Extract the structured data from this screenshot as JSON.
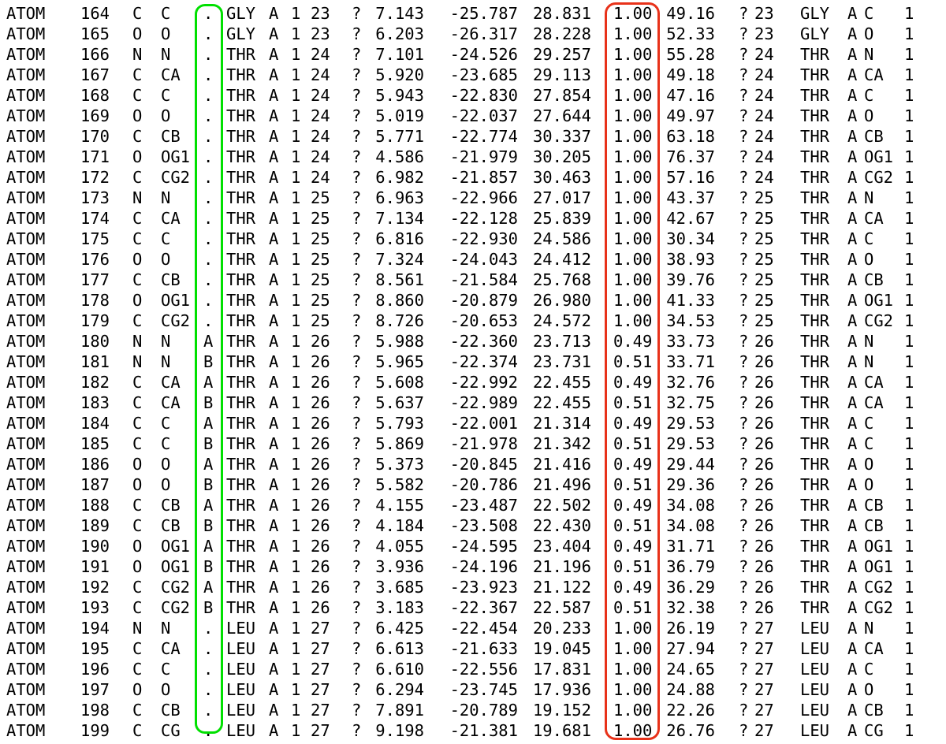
{
  "highlights": {
    "alt_loc_box_color": "#00e000",
    "occupancy_box_color": "#e8321a"
  },
  "rows": [
    [
      "ATOM",
      "164",
      "C",
      "C",
      ".",
      "GLY",
      "A",
      "1",
      "23",
      "?",
      "7.143",
      "-25.787",
      "28.831",
      "1.00",
      "49.16",
      "?",
      "23",
      "GLY",
      "A",
      "C",
      "1"
    ],
    [
      "ATOM",
      "165",
      "O",
      "O",
      ".",
      "GLY",
      "A",
      "1",
      "23",
      "?",
      "6.203",
      "-26.317",
      "28.228",
      "1.00",
      "52.33",
      "?",
      "23",
      "GLY",
      "A",
      "O",
      "1"
    ],
    [
      "ATOM",
      "166",
      "N",
      "N",
      ".",
      "THR",
      "A",
      "1",
      "24",
      "?",
      "7.101",
      "-24.526",
      "29.257",
      "1.00",
      "55.28",
      "?",
      "24",
      "THR",
      "A",
      "N",
      "1"
    ],
    [
      "ATOM",
      "167",
      "C",
      "CA",
      ".",
      "THR",
      "A",
      "1",
      "24",
      "?",
      "5.920",
      "-23.685",
      "29.113",
      "1.00",
      "49.18",
      "?",
      "24",
      "THR",
      "A",
      "CA",
      "1"
    ],
    [
      "ATOM",
      "168",
      "C",
      "C",
      ".",
      "THR",
      "A",
      "1",
      "24",
      "?",
      "5.943",
      "-22.830",
      "27.854",
      "1.00",
      "47.16",
      "?",
      "24",
      "THR",
      "A",
      "C",
      "1"
    ],
    [
      "ATOM",
      "169",
      "O",
      "O",
      ".",
      "THR",
      "A",
      "1",
      "24",
      "?",
      "5.019",
      "-22.037",
      "27.644",
      "1.00",
      "49.97",
      "?",
      "24",
      "THR",
      "A",
      "O",
      "1"
    ],
    [
      "ATOM",
      "170",
      "C",
      "CB",
      ".",
      "THR",
      "A",
      "1",
      "24",
      "?",
      "5.771",
      "-22.774",
      "30.337",
      "1.00",
      "63.18",
      "?",
      "24",
      "THR",
      "A",
      "CB",
      "1"
    ],
    [
      "ATOM",
      "171",
      "O",
      "OG1",
      ".",
      "THR",
      "A",
      "1",
      "24",
      "?",
      "4.586",
      "-21.979",
      "30.205",
      "1.00",
      "76.37",
      "?",
      "24",
      "THR",
      "A",
      "OG1",
      "1"
    ],
    [
      "ATOM",
      "172",
      "C",
      "CG2",
      ".",
      "THR",
      "A",
      "1",
      "24",
      "?",
      "6.982",
      "-21.857",
      "30.463",
      "1.00",
      "57.16",
      "?",
      "24",
      "THR",
      "A",
      "CG2",
      "1"
    ],
    [
      "ATOM",
      "173",
      "N",
      "N",
      ".",
      "THR",
      "A",
      "1",
      "25",
      "?",
      "6.963",
      "-22.966",
      "27.017",
      "1.00",
      "43.37",
      "?",
      "25",
      "THR",
      "A",
      "N",
      "1"
    ],
    [
      "ATOM",
      "174",
      "C",
      "CA",
      ".",
      "THR",
      "A",
      "1",
      "25",
      "?",
      "7.134",
      "-22.128",
      "25.839",
      "1.00",
      "42.67",
      "?",
      "25",
      "THR",
      "A",
      "CA",
      "1"
    ],
    [
      "ATOM",
      "175",
      "C",
      "C",
      ".",
      "THR",
      "A",
      "1",
      "25",
      "?",
      "6.816",
      "-22.930",
      "24.586",
      "1.00",
      "30.34",
      "?",
      "25",
      "THR",
      "A",
      "C",
      "1"
    ],
    [
      "ATOM",
      "176",
      "O",
      "O",
      ".",
      "THR",
      "A",
      "1",
      "25",
      "?",
      "7.324",
      "-24.043",
      "24.412",
      "1.00",
      "38.93",
      "?",
      "25",
      "THR",
      "A",
      "O",
      "1"
    ],
    [
      "ATOM",
      "177",
      "C",
      "CB",
      ".",
      "THR",
      "A",
      "1",
      "25",
      "?",
      "8.561",
      "-21.584",
      "25.768",
      "1.00",
      "39.76",
      "?",
      "25",
      "THR",
      "A",
      "CB",
      "1"
    ],
    [
      "ATOM",
      "178",
      "O",
      "OG1",
      ".",
      "THR",
      "A",
      "1",
      "25",
      "?",
      "8.860",
      "-20.879",
      "26.980",
      "1.00",
      "41.33",
      "?",
      "25",
      "THR",
      "A",
      "OG1",
      "1"
    ],
    [
      "ATOM",
      "179",
      "C",
      "CG2",
      ".",
      "THR",
      "A",
      "1",
      "25",
      "?",
      "8.726",
      "-20.653",
      "24.572",
      "1.00",
      "34.53",
      "?",
      "25",
      "THR",
      "A",
      "CG2",
      "1"
    ],
    [
      "ATOM",
      "180",
      "N",
      "N",
      "A",
      "THR",
      "A",
      "1",
      "26",
      "?",
      "5.988",
      "-22.360",
      "23.713",
      "0.49",
      "33.73",
      "?",
      "26",
      "THR",
      "A",
      "N",
      "1"
    ],
    [
      "ATOM",
      "181",
      "N",
      "N",
      "B",
      "THR",
      "A",
      "1",
      "26",
      "?",
      "5.965",
      "-22.374",
      "23.731",
      "0.51",
      "33.71",
      "?",
      "26",
      "THR",
      "A",
      "N",
      "1"
    ],
    [
      "ATOM",
      "182",
      "C",
      "CA",
      "A",
      "THR",
      "A",
      "1",
      "26",
      "?",
      "5.608",
      "-22.992",
      "22.455",
      "0.49",
      "32.76",
      "?",
      "26",
      "THR",
      "A",
      "CA",
      "1"
    ],
    [
      "ATOM",
      "183",
      "C",
      "CA",
      "B",
      "THR",
      "A",
      "1",
      "26",
      "?",
      "5.637",
      "-22.989",
      "22.455",
      "0.51",
      "32.75",
      "?",
      "26",
      "THR",
      "A",
      "CA",
      "1"
    ],
    [
      "ATOM",
      "184",
      "C",
      "C",
      "A",
      "THR",
      "A",
      "1",
      "26",
      "?",
      "5.793",
      "-22.001",
      "21.314",
      "0.49",
      "29.53",
      "?",
      "26",
      "THR",
      "A",
      "C",
      "1"
    ],
    [
      "ATOM",
      "185",
      "C",
      "C",
      "B",
      "THR",
      "A",
      "1",
      "26",
      "?",
      "5.869",
      "-21.978",
      "21.342",
      "0.51",
      "29.53",
      "?",
      "26",
      "THR",
      "A",
      "C",
      "1"
    ],
    [
      "ATOM",
      "186",
      "O",
      "O",
      "A",
      "THR",
      "A",
      "1",
      "26",
      "?",
      "5.373",
      "-20.845",
      "21.416",
      "0.49",
      "29.44",
      "?",
      "26",
      "THR",
      "A",
      "O",
      "1"
    ],
    [
      "ATOM",
      "187",
      "O",
      "O",
      "B",
      "THR",
      "A",
      "1",
      "26",
      "?",
      "5.582",
      "-20.786",
      "21.496",
      "0.51",
      "29.36",
      "?",
      "26",
      "THR",
      "A",
      "O",
      "1"
    ],
    [
      "ATOM",
      "188",
      "C",
      "CB",
      "A",
      "THR",
      "A",
      "1",
      "26",
      "?",
      "4.155",
      "-23.487",
      "22.502",
      "0.49",
      "34.08",
      "?",
      "26",
      "THR",
      "A",
      "CB",
      "1"
    ],
    [
      "ATOM",
      "189",
      "C",
      "CB",
      "B",
      "THR",
      "A",
      "1",
      "26",
      "?",
      "4.184",
      "-23.508",
      "22.430",
      "0.51",
      "34.08",
      "?",
      "26",
      "THR",
      "A",
      "CB",
      "1"
    ],
    [
      "ATOM",
      "190",
      "O",
      "OG1",
      "A",
      "THR",
      "A",
      "1",
      "26",
      "?",
      "4.055",
      "-24.595",
      "23.404",
      "0.49",
      "31.71",
      "?",
      "26",
      "THR",
      "A",
      "OG1",
      "1"
    ],
    [
      "ATOM",
      "191",
      "O",
      "OG1",
      "B",
      "THR",
      "A",
      "1",
      "26",
      "?",
      "3.936",
      "-24.196",
      "21.196",
      "0.51",
      "36.79",
      "?",
      "26",
      "THR",
      "A",
      "OG1",
      "1"
    ],
    [
      "ATOM",
      "192",
      "C",
      "CG2",
      "A",
      "THR",
      "A",
      "1",
      "26",
      "?",
      "3.685",
      "-23.923",
      "21.122",
      "0.49",
      "36.29",
      "?",
      "26",
      "THR",
      "A",
      "CG2",
      "1"
    ],
    [
      "ATOM",
      "193",
      "C",
      "CG2",
      "B",
      "THR",
      "A",
      "1",
      "26",
      "?",
      "3.183",
      "-22.367",
      "22.587",
      "0.51",
      "32.38",
      "?",
      "26",
      "THR",
      "A",
      "CG2",
      "1"
    ],
    [
      "ATOM",
      "194",
      "N",
      "N",
      ".",
      "LEU",
      "A",
      "1",
      "27",
      "?",
      "6.425",
      "-22.454",
      "20.233",
      "1.00",
      "26.19",
      "?",
      "27",
      "LEU",
      "A",
      "N",
      "1"
    ],
    [
      "ATOM",
      "195",
      "C",
      "CA",
      ".",
      "LEU",
      "A",
      "1",
      "27",
      "?",
      "6.613",
      "-21.633",
      "19.045",
      "1.00",
      "27.94",
      "?",
      "27",
      "LEU",
      "A",
      "CA",
      "1"
    ],
    [
      "ATOM",
      "196",
      "C",
      "C",
      ".",
      "LEU",
      "A",
      "1",
      "27",
      "?",
      "6.610",
      "-22.556",
      "17.831",
      "1.00",
      "24.65",
      "?",
      "27",
      "LEU",
      "A",
      "C",
      "1"
    ],
    [
      "ATOM",
      "197",
      "O",
      "O",
      ".",
      "LEU",
      "A",
      "1",
      "27",
      "?",
      "6.294",
      "-23.745",
      "17.936",
      "1.00",
      "24.88",
      "?",
      "27",
      "LEU",
      "A",
      "O",
      "1"
    ],
    [
      "ATOM",
      "198",
      "C",
      "CB",
      ".",
      "LEU",
      "A",
      "1",
      "27",
      "?",
      "7.891",
      "-20.789",
      "19.152",
      "1.00",
      "22.26",
      "?",
      "27",
      "LEU",
      "A",
      "CB",
      "1"
    ],
    [
      "ATOM",
      "199",
      "C",
      "CG",
      ".",
      "LEU",
      "A",
      "1",
      "27",
      "?",
      "9.198",
      "-21.381",
      "19.681",
      "1.00",
      "26.76",
      "?",
      "27",
      "LEU",
      "A",
      "CG",
      "1"
    ]
  ]
}
